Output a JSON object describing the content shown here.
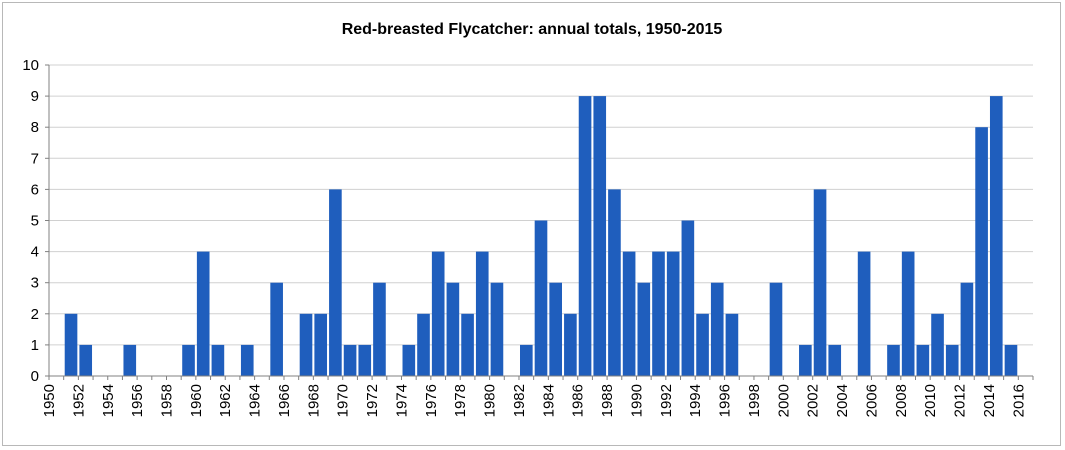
{
  "chart_data": {
    "type": "bar",
    "title": "Red-breasted Flycatcher: annual totals, 1950-2015",
    "xlabel": "",
    "ylabel": "",
    "ylim": [
      0,
      10
    ],
    "yticks": [
      "0",
      "1",
      "2",
      "3",
      "4",
      "5",
      "6",
      "7",
      "8",
      "9",
      "10"
    ],
    "xticks": [
      "1950",
      "1952",
      "1954",
      "1956",
      "1958",
      "1960",
      "1962",
      "1964",
      "1966",
      "1968",
      "1970",
      "1972",
      "1974",
      "1976",
      "1978",
      "1980",
      "1982",
      "1984",
      "1986",
      "1988",
      "1990",
      "1992",
      "1994",
      "1996",
      "1998",
      "2000",
      "2002",
      "2004",
      "2006",
      "2008",
      "2010",
      "2012",
      "2014",
      "2016"
    ],
    "grid": true,
    "bar_color": "#1f5ebd",
    "grid_color": "#d0d0d0",
    "categories": [
      1950,
      1951,
      1952,
      1953,
      1954,
      1955,
      1956,
      1957,
      1958,
      1959,
      1960,
      1961,
      1962,
      1963,
      1964,
      1965,
      1966,
      1967,
      1968,
      1969,
      1970,
      1971,
      1972,
      1973,
      1974,
      1975,
      1976,
      1977,
      1978,
      1979,
      1980,
      1981,
      1982,
      1983,
      1984,
      1985,
      1986,
      1987,
      1988,
      1989,
      1990,
      1991,
      1992,
      1993,
      1994,
      1995,
      1996,
      1997,
      1998,
      1999,
      2000,
      2001,
      2002,
      2003,
      2004,
      2005,
      2006,
      2007,
      2008,
      2009,
      2010,
      2011,
      2012,
      2013,
      2014,
      2015
    ],
    "values": [
      0,
      2,
      1,
      0,
      0,
      1,
      0,
      0,
      0,
      1,
      4,
      1,
      0,
      1,
      0,
      3,
      0,
      2,
      2,
      6,
      1,
      1,
      3,
      0,
      1,
      2,
      4,
      3,
      2,
      4,
      3,
      0,
      1,
      5,
      3,
      2,
      9,
      9,
      6,
      4,
      3,
      4,
      4,
      5,
      2,
      3,
      2,
      0,
      0,
      3,
      0,
      1,
      6,
      1,
      0,
      4,
      0,
      1,
      4,
      1,
      2,
      1,
      3,
      8,
      9,
      1
    ]
  }
}
